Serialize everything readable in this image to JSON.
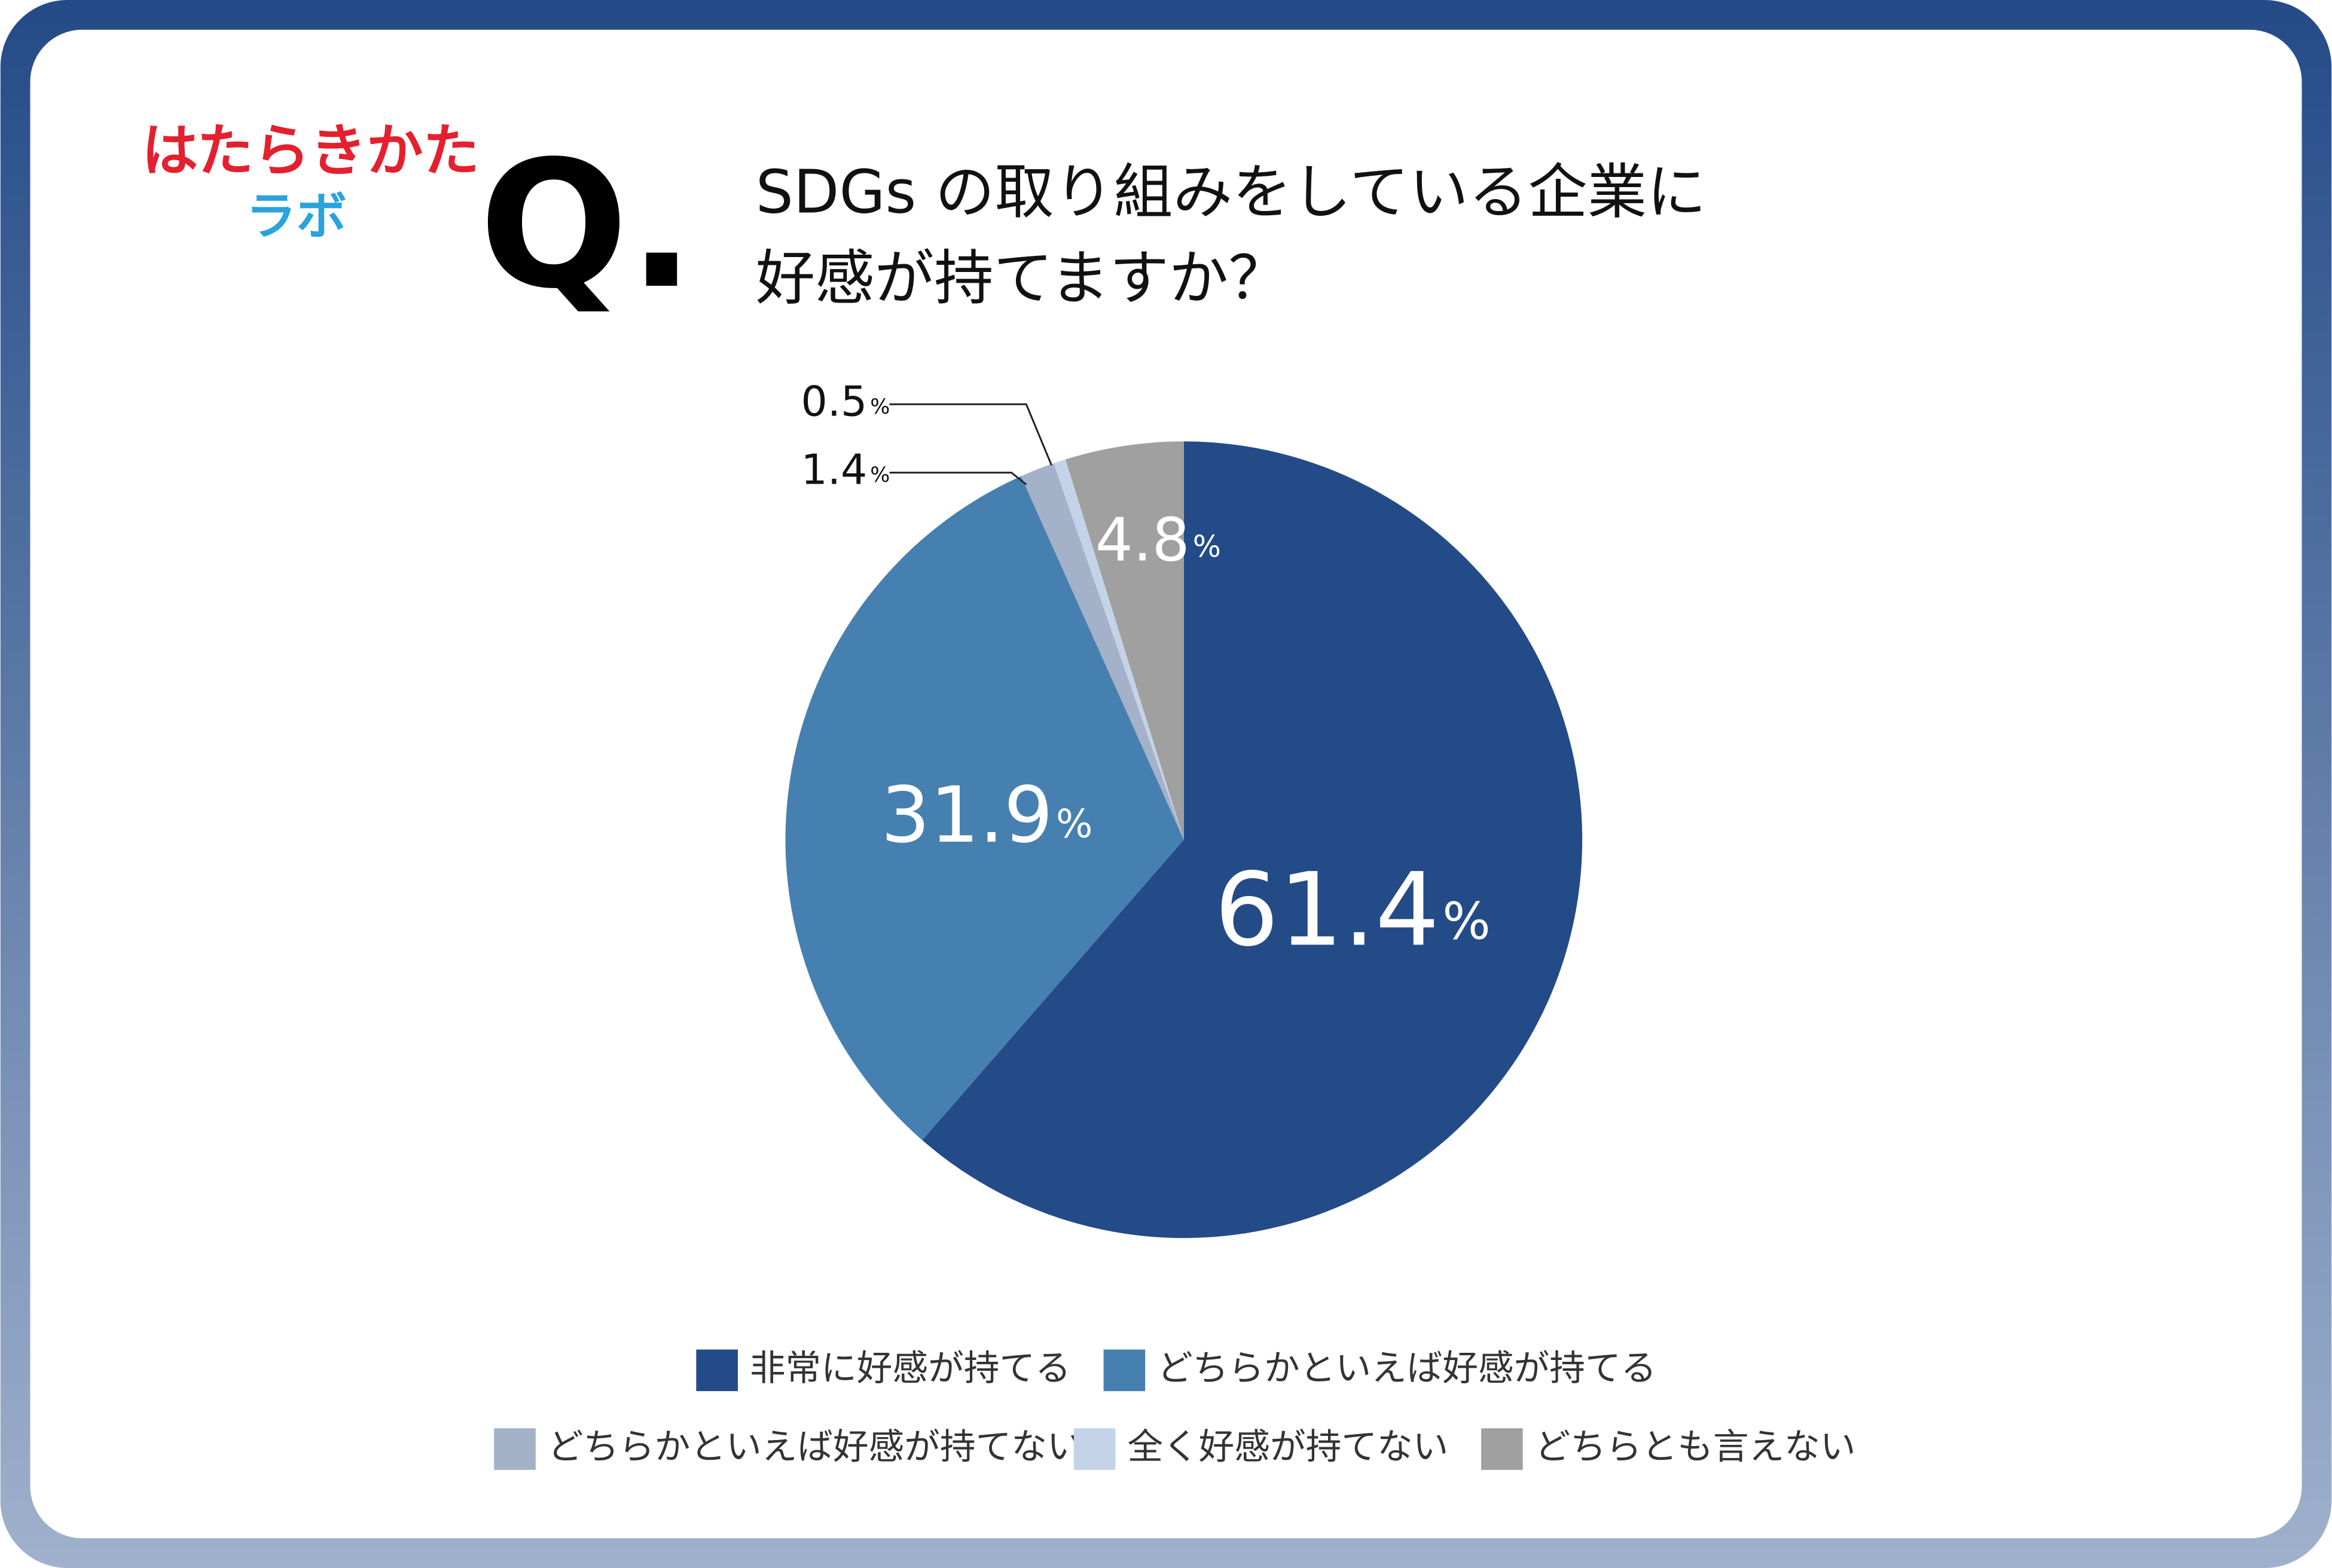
{
  "logo": [
    "はたらきかた",
    "ラボ"
  ],
  "question_mark": "Q.",
  "chart_data": {
    "type": "pie",
    "title": [
      "SDGs の取り組みをしている企業に",
      "好感が持てますか？"
    ],
    "categories": [
      "非常に好感が持てる",
      "どちらかといえば好感が持てる",
      "どちらかといえば好感が持てない",
      "全く好感が持てない",
      "どちらとも言えない"
    ],
    "values": [
      61.4,
      31.9,
      1.4,
      0.5,
      4.8
    ],
    "value_unit": "%",
    "colors": [
      "#234b87",
      "#4680b0",
      "#a3b1c9",
      "#c4d3e7",
      "#a0a0a0"
    ]
  }
}
